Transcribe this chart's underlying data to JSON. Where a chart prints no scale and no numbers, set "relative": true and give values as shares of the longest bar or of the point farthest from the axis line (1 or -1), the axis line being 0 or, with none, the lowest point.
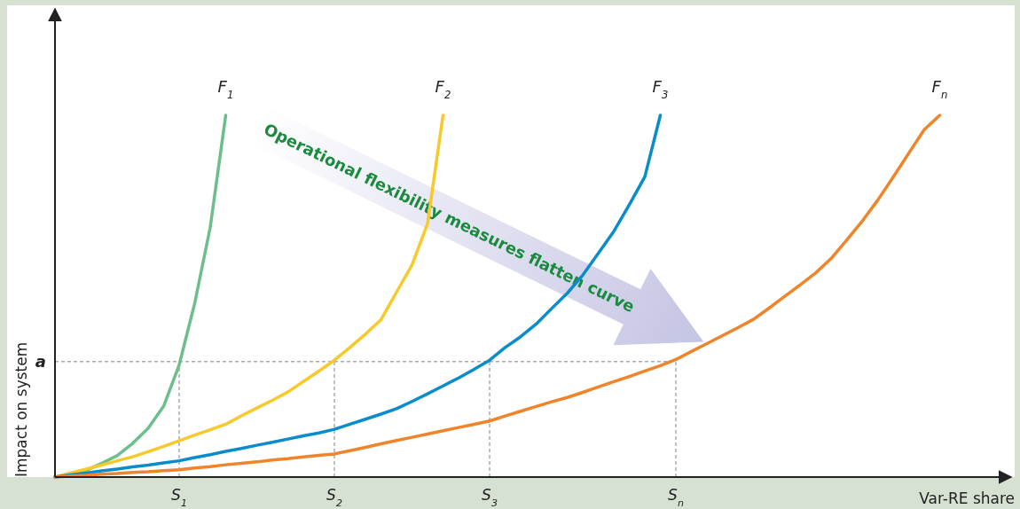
{
  "chart_data": {
    "type": "line",
    "relative": true,
    "xlabel": "Var-RE share",
    "ylabel": "Impact on system",
    "categories": [
      null,
      null,
      null,
      null,
      null,
      null,
      null,
      null,
      "S$_{1}$",
      null,
      null,
      null,
      null,
      null,
      null,
      null,
      null,
      null,
      "S$_{2}$",
      null,
      null,
      null,
      null,
      null,
      null,
      null,
      null,
      null,
      "S$_{3}$",
      null,
      null,
      null,
      null,
      null,
      null,
      null,
      null,
      null,
      null,
      null,
      "S$_{n}$",
      null,
      null,
      null,
      null,
      null,
      null,
      null,
      null,
      null,
      null,
      null,
      null,
      null,
      null,
      null,
      null,
      null,
      null,
      null,
      null,
      null
    ],
    "marker": "none",
    "line_style": "solid",
    "series": [
      {
        "name": "F$_{1}$",
        "color": "#6cbf8c",
        "values": [
          0,
          0.009,
          0.018,
          0.038,
          0.059,
          0.093,
          0.135,
          0.196,
          0.31,
          0.48,
          0.69,
          1,
          null,
          null,
          null,
          null,
          null,
          null,
          null,
          null,
          null,
          null,
          null,
          null,
          null,
          null,
          null,
          null,
          null,
          null,
          null,
          null,
          null,
          null,
          null,
          null,
          null,
          null,
          null,
          null,
          null,
          null,
          null,
          null,
          null,
          null,
          null,
          null,
          null,
          null,
          null,
          null,
          null,
          null,
          null,
          null,
          null,
          null,
          null,
          null,
          null,
          null
        ]
      },
      {
        "name": "F$_{2}$",
        "color": "#f7c92a",
        "values": [
          0,
          0.011,
          0.022,
          0.033,
          0.045,
          0.056,
          0.07,
          0.085,
          0.1,
          0.116,
          0.131,
          0.146,
          0.169,
          0.191,
          0.212,
          0.235,
          0.264,
          0.293,
          0.323,
          0.358,
          0.395,
          0.435,
          0.511,
          0.586,
          0.7,
          1,
          null,
          null,
          null,
          null,
          null,
          null,
          null,
          null,
          null,
          null,
          null,
          null,
          null,
          null,
          null,
          null,
          null,
          null,
          null,
          null,
          null,
          null,
          null,
          null,
          null,
          null,
          null,
          null,
          null,
          null,
          null,
          null,
          null,
          null,
          null,
          null
        ]
      },
      {
        "name": "F$_{3}$",
        "color": "#0a8ccc",
        "values": [
          0,
          0.006,
          0.011,
          0.017,
          0.022,
          0.028,
          0.033,
          0.039,
          0.045,
          0.054,
          0.062,
          0.071,
          0.079,
          0.088,
          0.096,
          0.105,
          0.114,
          0.122,
          0.132,
          0.146,
          0.16,
          0.174,
          0.189,
          0.209,
          0.23,
          0.252,
          0.274,
          0.298,
          0.323,
          0.358,
          0.388,
          0.423,
          0.466,
          0.508,
          0.558,
          0.618,
          0.679,
          0.753,
          0.83,
          1,
          null,
          null,
          null,
          null,
          null,
          null,
          null,
          null,
          null,
          null,
          null,
          null,
          null,
          null,
          null,
          null,
          null,
          null,
          null,
          null,
          null,
          null
        ]
      },
      {
        "name": "F$_{n}$",
        "color": "#f0842a",
        "values": [
          0,
          0.003,
          0.005,
          0.008,
          0.01,
          0.013,
          0.015,
          0.018,
          0.02,
          0.025,
          0.029,
          0.034,
          0.038,
          0.042,
          0.047,
          0.051,
          0.056,
          0.06,
          0.064,
          0.073,
          0.082,
          0.092,
          0.101,
          0.11,
          0.119,
          0.128,
          0.137,
          0.146,
          0.155,
          0.169,
          0.182,
          0.195,
          0.208,
          0.22,
          0.234,
          0.249,
          0.264,
          0.278,
          0.293,
          0.308,
          0.325,
          0.347,
          0.369,
          0.391,
          0.413,
          0.436,
          0.467,
          0.499,
          0.531,
          0.564,
          0.604,
          0.655,
          0.707,
          0.765,
          0.829,
          0.895,
          0.96,
          1,
          null,
          null,
          null,
          null
        ]
      }
    ],
    "ref_lines": [
      {
        "axis": "y",
        "value": 0.319,
        "label": "a",
        "line_style": "dashed",
        "color": "#aaaaaa"
      },
      {
        "axis": "x",
        "value": "S$_{1}$",
        "line_style": "dashed",
        "color": "#aaaaaa"
      },
      {
        "axis": "x",
        "value": "S$_{2}$",
        "line_style": "dashed",
        "color": "#aaaaaa"
      },
      {
        "axis": "x",
        "value": "S$_{3}$",
        "line_style": "dashed",
        "color": "#aaaaaa"
      },
      {
        "axis": "x",
        "value": "S$_{n}$",
        "line_style": "dashed",
        "color": "#aaaaaa"
      }
    ],
    "annotations": [
      "Operational flexibility measures flatten curve"
    ]
  }
}
